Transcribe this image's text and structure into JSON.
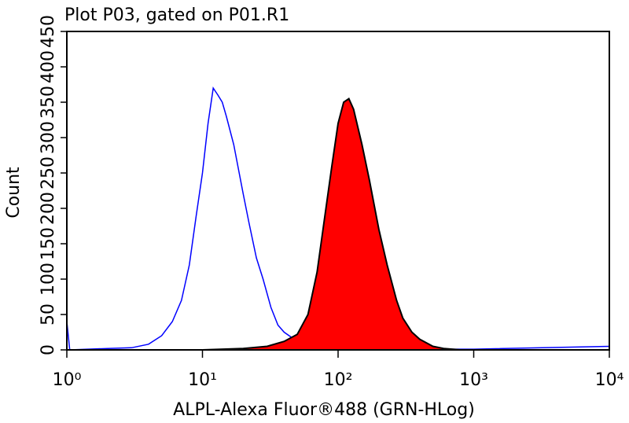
{
  "chart_data": {
    "type": "histogram-overlay",
    "title": "Plot P03, gated on P01.R1",
    "x_label": "ALPL-Alexa Fluor®488 (GRN-HLog)",
    "y_label": "Count",
    "log_x": true,
    "xlim": [
      1,
      10000
    ],
    "xticks": [
      {
        "value": 1,
        "label": "10⁰"
      },
      {
        "value": 10,
        "label": "10¹"
      },
      {
        "value": 100,
        "label": "10²"
      },
      {
        "value": 1000,
        "label": "10³"
      },
      {
        "value": 10000,
        "label": "10⁴"
      }
    ],
    "ylim": [
      0,
      450
    ],
    "yticks": [
      0,
      50,
      100,
      150,
      200,
      250,
      300,
      350,
      400,
      450
    ],
    "series": [
      {
        "color": "#0000ff",
        "filled": false,
        "x": [
          1,
          1.05,
          2,
          3,
          4,
          5,
          6,
          7,
          8,
          9,
          10,
          11,
          12,
          13,
          14,
          15,
          17,
          20,
          22,
          25,
          28,
          32,
          36,
          40,
          50,
          60,
          80,
          100,
          1000,
          10000
        ],
        "values": [
          40,
          0,
          2,
          3,
          8,
          20,
          40,
          70,
          120,
          190,
          250,
          320,
          370,
          360,
          350,
          330,
          290,
          220,
          180,
          130,
          100,
          60,
          35,
          25,
          12,
          5,
          2,
          1,
          1,
          5
        ]
      },
      {
        "color": "#ff0000",
        "filled": true,
        "x": [
          10,
          20,
          30,
          40,
          50,
          60,
          70,
          80,
          90,
          100,
          110,
          120,
          130,
          150,
          170,
          200,
          230,
          270,
          300,
          350,
          400,
          500,
          600,
          800
        ],
        "values": [
          0,
          2,
          5,
          12,
          22,
          50,
          110,
          190,
          260,
          320,
          350,
          355,
          340,
          290,
          240,
          170,
          120,
          70,
          45,
          25,
          15,
          5,
          2,
          0
        ]
      }
    ]
  }
}
